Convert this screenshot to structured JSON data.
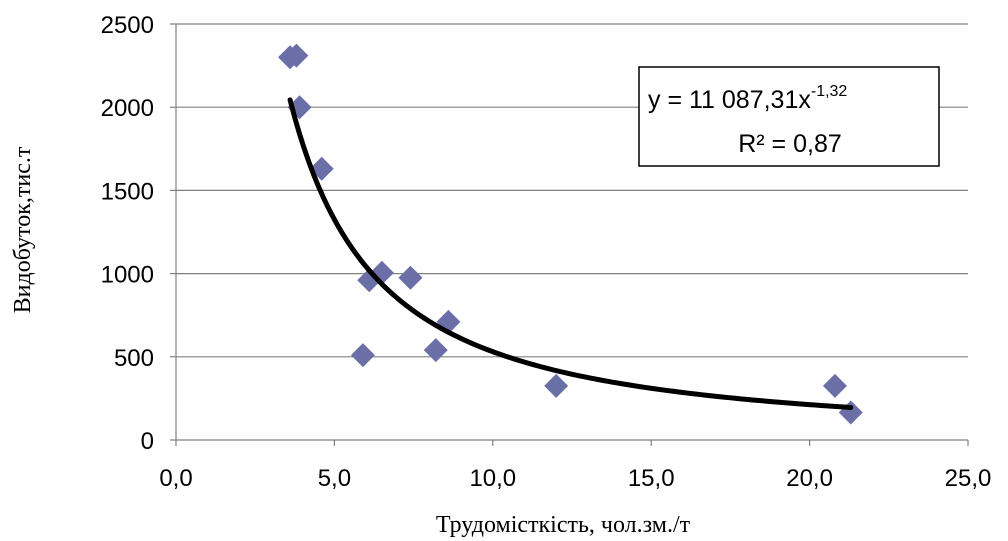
{
  "chart_data": {
    "type": "scatter",
    "title": "",
    "xlabel": "Трудомісткість, чол.зм./т",
    "ylabel": "Видобуток,тис.т",
    "xlim": [
      0,
      25
    ],
    "ylim": [
      0,
      2500
    ],
    "x_ticks": [
      0,
      5,
      10,
      15,
      20,
      25
    ],
    "x_tick_labels": [
      "0,0",
      "5,0",
      "10,0",
      "15,0",
      "20,0",
      "25,0"
    ],
    "y_ticks": [
      0,
      500,
      1000,
      1500,
      2000,
      2500
    ],
    "y_tick_labels": [
      "0",
      "500",
      "1000",
      "1500",
      "2000",
      "2500"
    ],
    "grid": "horizontal",
    "legend": "none",
    "series": [
      {
        "marker": "diamond",
        "color": "#6b6fa8",
        "points": [
          {
            "x": 3.6,
            "y": 2300
          },
          {
            "x": 3.8,
            "y": 2310
          },
          {
            "x": 3.9,
            "y": 2000
          },
          {
            "x": 4.6,
            "y": 1630
          },
          {
            "x": 5.9,
            "y": 510
          },
          {
            "x": 6.1,
            "y": 960
          },
          {
            "x": 6.5,
            "y": 1005
          },
          {
            "x": 7.4,
            "y": 975
          },
          {
            "x": 8.2,
            "y": 540
          },
          {
            "x": 8.6,
            "y": 710
          },
          {
            "x": 12.0,
            "y": 325
          },
          {
            "x": 20.8,
            "y": 325
          },
          {
            "x": 21.3,
            "y": 165
          }
        ]
      }
    ],
    "trendline": {
      "type": "power",
      "coefficient": 11087.31,
      "exponent": -1.32,
      "x_range": [
        3.6,
        21.3
      ],
      "color": "#000000",
      "equation_prefix": "y = 11 087,31x",
      "equation_exponent": "-1,32",
      "r_squared_text": "R² = 0,87"
    }
  }
}
